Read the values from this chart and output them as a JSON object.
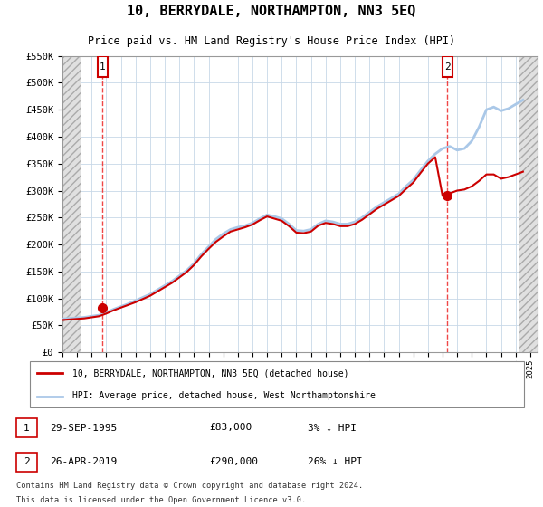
{
  "title": "10, BERRYDALE, NORTHAMPTON, NN3 5EQ",
  "subtitle": "Price paid vs. HM Land Registry's House Price Index (HPI)",
  "legend_line1": "10, BERRYDALE, NORTHAMPTON, NN3 5EQ (detached house)",
  "legend_line2": "HPI: Average price, detached house, West Northamptonshire",
  "footnote1": "Contains HM Land Registry data © Crown copyright and database right 2024.",
  "footnote2": "This data is licensed under the Open Government Licence v3.0.",
  "sale1_date": "29-SEP-1995",
  "sale1_price": "£83,000",
  "sale1_hpi": "3% ↓ HPI",
  "sale2_date": "26-APR-2019",
  "sale2_price": "£290,000",
  "sale2_hpi": "26% ↓ HPI",
  "ytick_labels": [
    "£0",
    "£50K",
    "£100K",
    "£150K",
    "£200K",
    "£250K",
    "£300K",
    "£350K",
    "£400K",
    "£450K",
    "£500K",
    "£550K"
  ],
  "ytick_values": [
    0,
    50000,
    100000,
    150000,
    200000,
    250000,
    300000,
    350000,
    400000,
    450000,
    500000,
    550000
  ],
  "hpi_color": "#aac8e8",
  "price_color": "#cc0000",
  "marker_color": "#cc0000",
  "grid_color": "#c8d8e8",
  "dashed_line_color": "#ee3333",
  "sale1_year": 1995.75,
  "sale2_year": 2019.33,
  "hpi_years": [
    1993.0,
    1993.5,
    1994.0,
    1994.5,
    1995.0,
    1995.5,
    1996.0,
    1996.5,
    1997.0,
    1997.5,
    1998.0,
    1998.5,
    1999.0,
    1999.5,
    2000.0,
    2000.5,
    2001.0,
    2001.5,
    2002.0,
    2002.5,
    2003.0,
    2003.5,
    2004.0,
    2004.5,
    2005.0,
    2005.5,
    2006.0,
    2006.5,
    2007.0,
    2007.5,
    2008.0,
    2008.5,
    2009.0,
    2009.5,
    2010.0,
    2010.5,
    2011.0,
    2011.5,
    2012.0,
    2012.5,
    2013.0,
    2013.5,
    2014.0,
    2014.5,
    2015.0,
    2015.5,
    2016.0,
    2016.5,
    2017.0,
    2017.5,
    2018.0,
    2018.5,
    2019.0,
    2019.5,
    2020.0,
    2020.5,
    2021.0,
    2021.5,
    2022.0,
    2022.5,
    2023.0,
    2023.5,
    2024.0,
    2024.5
  ],
  "hpi_values": [
    62000,
    63000,
    64000,
    65000,
    67000,
    69000,
    74000,
    80000,
    85000,
    90000,
    96000,
    102000,
    108000,
    116000,
    124000,
    132000,
    142000,
    152000,
    165000,
    182000,
    196000,
    210000,
    220000,
    228000,
    232000,
    235000,
    240000,
    248000,
    255000,
    252000,
    248000,
    238000,
    226000,
    225000,
    228000,
    238000,
    244000,
    242000,
    238000,
    238000,
    242000,
    250000,
    260000,
    270000,
    278000,
    286000,
    294000,
    308000,
    320000,
    338000,
    355000,
    368000,
    378000,
    382000,
    375000,
    378000,
    392000,
    418000,
    450000,
    455000,
    448000,
    452000,
    460000,
    468000
  ],
  "price_years": [
    1993.0,
    1993.5,
    1994.0,
    1994.5,
    1995.0,
    1995.5,
    1996.0,
    1996.5,
    1997.0,
    1997.5,
    1998.0,
    1998.5,
    1999.0,
    1999.5,
    2000.0,
    2000.5,
    2001.0,
    2001.5,
    2002.0,
    2002.5,
    2003.0,
    2003.5,
    2004.0,
    2004.5,
    2005.0,
    2005.5,
    2006.0,
    2006.5,
    2007.0,
    2007.5,
    2008.0,
    2008.5,
    2009.0,
    2009.5,
    2010.0,
    2010.5,
    2011.0,
    2011.5,
    2012.0,
    2012.5,
    2013.0,
    2013.5,
    2014.0,
    2014.5,
    2015.0,
    2015.5,
    2016.0,
    2016.5,
    2017.0,
    2017.5,
    2018.0,
    2018.5,
    2019.0,
    2019.5,
    2020.0,
    2020.5,
    2021.0,
    2021.5,
    2022.0,
    2022.5,
    2023.0,
    2023.5,
    2024.0,
    2024.5
  ],
  "price_values": [
    60000,
    61000,
    62000,
    63000,
    65000,
    67000,
    72000,
    78000,
    83000,
    88000,
    93000,
    99000,
    105000,
    113000,
    121000,
    129000,
    139000,
    149000,
    162000,
    178000,
    192000,
    205000,
    215000,
    224000,
    228000,
    232000,
    237000,
    245000,
    252000,
    248000,
    244000,
    234000,
    222000,
    221000,
    224000,
    235000,
    240000,
    238000,
    234000,
    234000,
    238000,
    246000,
    256000,
    266000,
    274000,
    282000,
    290000,
    303000,
    315000,
    333000,
    350000,
    362000,
    290000,
    295000,
    300000,
    302000,
    308000,
    318000,
    330000,
    330000,
    322000,
    325000,
    330000,
    335000
  ]
}
